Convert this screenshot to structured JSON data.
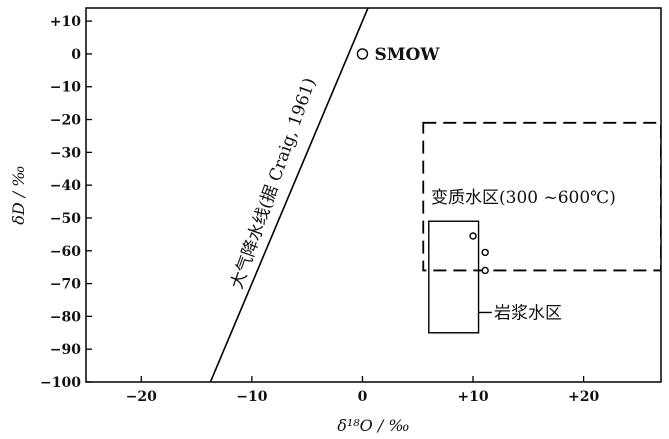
{
  "chart_data": {
    "type": "scatter",
    "title": "",
    "xlabel": "δ¹⁸O / ‰",
    "ylabel": "δD / ‰",
    "xlim": [
      -25,
      27
    ],
    "ylim": [
      -100,
      14
    ],
    "grid": false,
    "x_ticks": [
      -20,
      -10,
      0,
      10,
      20
    ],
    "x_tick_labels": [
      "−20",
      "−10",
      "0",
      "+10",
      "+20"
    ],
    "y_ticks": [
      10,
      0,
      -10,
      -20,
      -30,
      -40,
      -50,
      -60,
      -70,
      -80,
      -90,
      -100
    ],
    "y_tick_labels": [
      "+10",
      "0",
      "−10",
      "−20",
      "−30",
      "−40",
      "−50",
      "−60",
      "−70",
      "−80",
      "−90",
      "−100"
    ],
    "meteoric_water_line": {
      "label": "大气降水线(据 Craig, 1961)",
      "points": [
        [
          -13.75,
          -100
        ],
        [
          3.25,
          36
        ]
      ]
    },
    "points": [
      {
        "x": 0,
        "y": 0,
        "label": "SMOW"
      },
      {
        "x": 10,
        "y": -55.5,
        "label": ""
      },
      {
        "x": 11.1,
        "y": -60.5,
        "label": ""
      },
      {
        "x": 11.1,
        "y": -66,
        "label": ""
      }
    ],
    "regions": [
      {
        "name": "变质水区(300  ~600℃)",
        "style": "dashed",
        "x": [
          5.5,
          27
        ],
        "y": [
          -66,
          -21
        ]
      },
      {
        "name": "岩浆水区",
        "style": "solid",
        "x": [
          6,
          10.5
        ],
        "y": [
          -85,
          -51
        ]
      }
    ]
  }
}
